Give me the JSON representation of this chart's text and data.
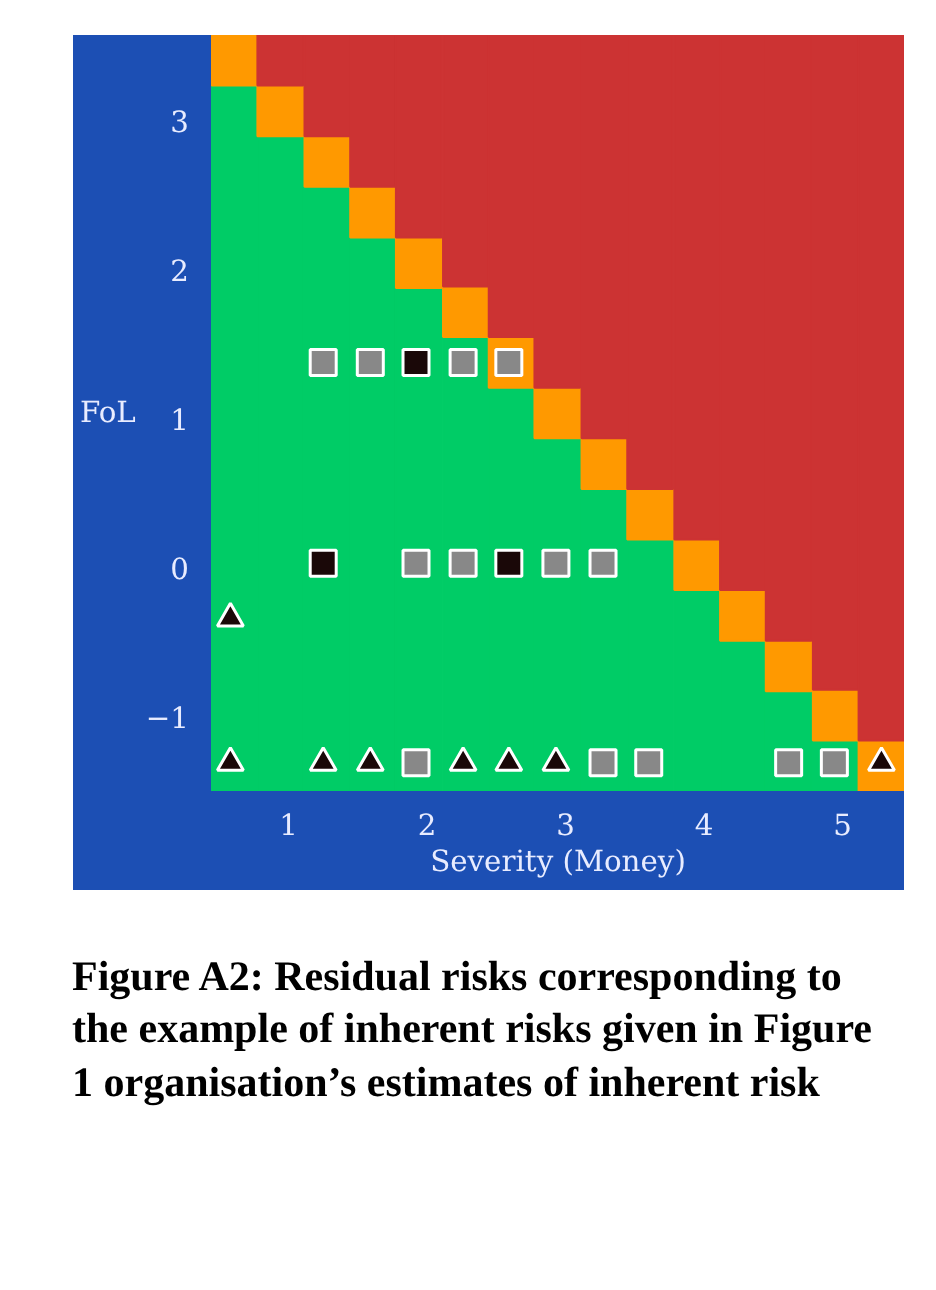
{
  "chart_data": {
    "type": "bar",
    "xlabel": "Severity (Money)",
    "ylabel": "FoL",
    "annotations": [
      "Figure A2: Residual risks corresponding to the example of inherent risks given in Figure 1 organisation’s estimates of inherent risk"
    ],
    "xlim": [
      0.44,
      5.45
    ],
    "ylim": [
      -1.5,
      3.58
    ],
    "xticks": [
      1,
      2,
      3,
      4,
      5
    ],
    "yticks": [
      -1,
      0,
      1,
      2,
      3
    ],
    "x": [
      0.61,
      0.94,
      1.28,
      1.61,
      1.94,
      2.28,
      2.61,
      2.94,
      3.28,
      3.61,
      3.95,
      4.28,
      4.61,
      4.95,
      5.28
    ],
    "series": [
      {
        "color": "#00cc66",
        "base": [
          -1.5,
          -1.5,
          -1.5,
          -1.5,
          -1.5,
          -1.5,
          -1.5,
          -1.5,
          -1.5,
          -1.5,
          -1.5,
          -1.5,
          -1.5,
          -1.5,
          null
        ],
        "values": [
          4.74,
          4.4,
          4.06,
          3.72,
          3.38,
          3.05,
          2.71,
          2.37,
          2.03,
          1.69,
          1.35,
          1.01,
          0.67,
          0.34,
          null
        ]
      },
      {
        "color": "#ff9900",
        "base": [
          3.24,
          2.9,
          2.56,
          2.22,
          1.88,
          1.55,
          1.21,
          0.87,
          0.53,
          0.19,
          -0.15,
          -0.49,
          -0.83,
          -1.16,
          -1.5
        ],
        "values": [
          0.34,
          0.34,
          0.34,
          0.34,
          0.34,
          0.34,
          0.34,
          0.34,
          0.34,
          0.34,
          0.34,
          0.34,
          0.34,
          0.34,
          0.34
        ]
      },
      {
        "color": "#cc3333",
        "base": [
          null,
          3.24,
          2.9,
          2.56,
          2.22,
          1.89,
          1.55,
          1.21,
          0.87,
          0.53,
          0.19,
          -0.15,
          -0.49,
          -0.82,
          -1.16
        ],
        "values": [
          null,
          0.34,
          0.68,
          1.02,
          1.36,
          1.69,
          2.03,
          2.37,
          2.71,
          3.05,
          3.39,
          3.73,
          4.07,
          4.4,
          4.74
        ]
      },
      {
        "type": "scatter",
        "marker": "square",
        "color": "#888888",
        "x": [
          1.25,
          1.59,
          2.26,
          2.59,
          1.92,
          2.26,
          2.93,
          3.27,
          1.92,
          3.27,
          3.6,
          4.61,
          4.94
        ],
        "values": [
          1.38,
          1.38,
          1.38,
          1.38,
          0.03,
          0.03,
          0.03,
          0.03,
          -1.31,
          -1.31,
          -1.31,
          -1.31,
          -1.31
        ]
      },
      {
        "type": "scatter",
        "marker": "square",
        "color": "#1a0808",
        "x": [
          1.92,
          1.25,
          2.59
        ],
        "values": [
          1.38,
          0.03,
          0.03
        ]
      },
      {
        "type": "scatter",
        "marker": "triangle",
        "color": "#1a0808",
        "x": [
          0.58,
          0.58,
          1.25,
          1.59,
          2.26,
          2.59,
          2.93,
          5.28
        ],
        "values": [
          -0.34,
          -1.31,
          -1.31,
          -1.31,
          -1.31,
          -1.31,
          -1.31,
          -1.31
        ]
      }
    ]
  }
}
